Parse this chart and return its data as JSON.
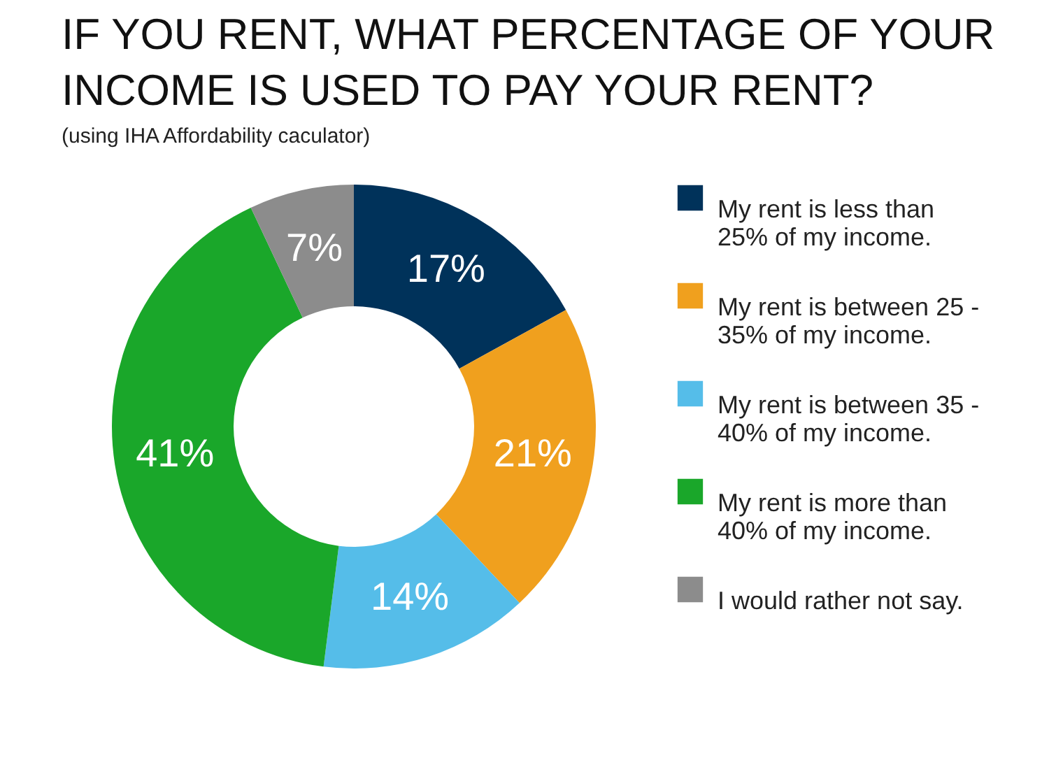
{
  "chart_data": {
    "type": "donut",
    "title": "IF YOU RENT, WHAT PERCENTAGE OF YOUR INCOME IS USED TO PAY YOUR RENT?",
    "subtitle": "(using IHA Affordability caculator)",
    "categories": [
      "My rent is less than 25% of my income.",
      "My rent is between 25 - 35% of my income.",
      "My rent is between 35 - 40% of my income.",
      "My rent is more than 40% of my income.",
      "I would rather not say."
    ],
    "values": [
      17,
      21,
      14,
      41,
      7
    ],
    "colors": [
      "#00325a",
      "#f0a01e",
      "#55bde9",
      "#1aa72a",
      "#8c8c8c"
    ],
    "value_labels": [
      "17%",
      "21%",
      "14%",
      "41%",
      "7%"
    ],
    "legend": "right"
  }
}
